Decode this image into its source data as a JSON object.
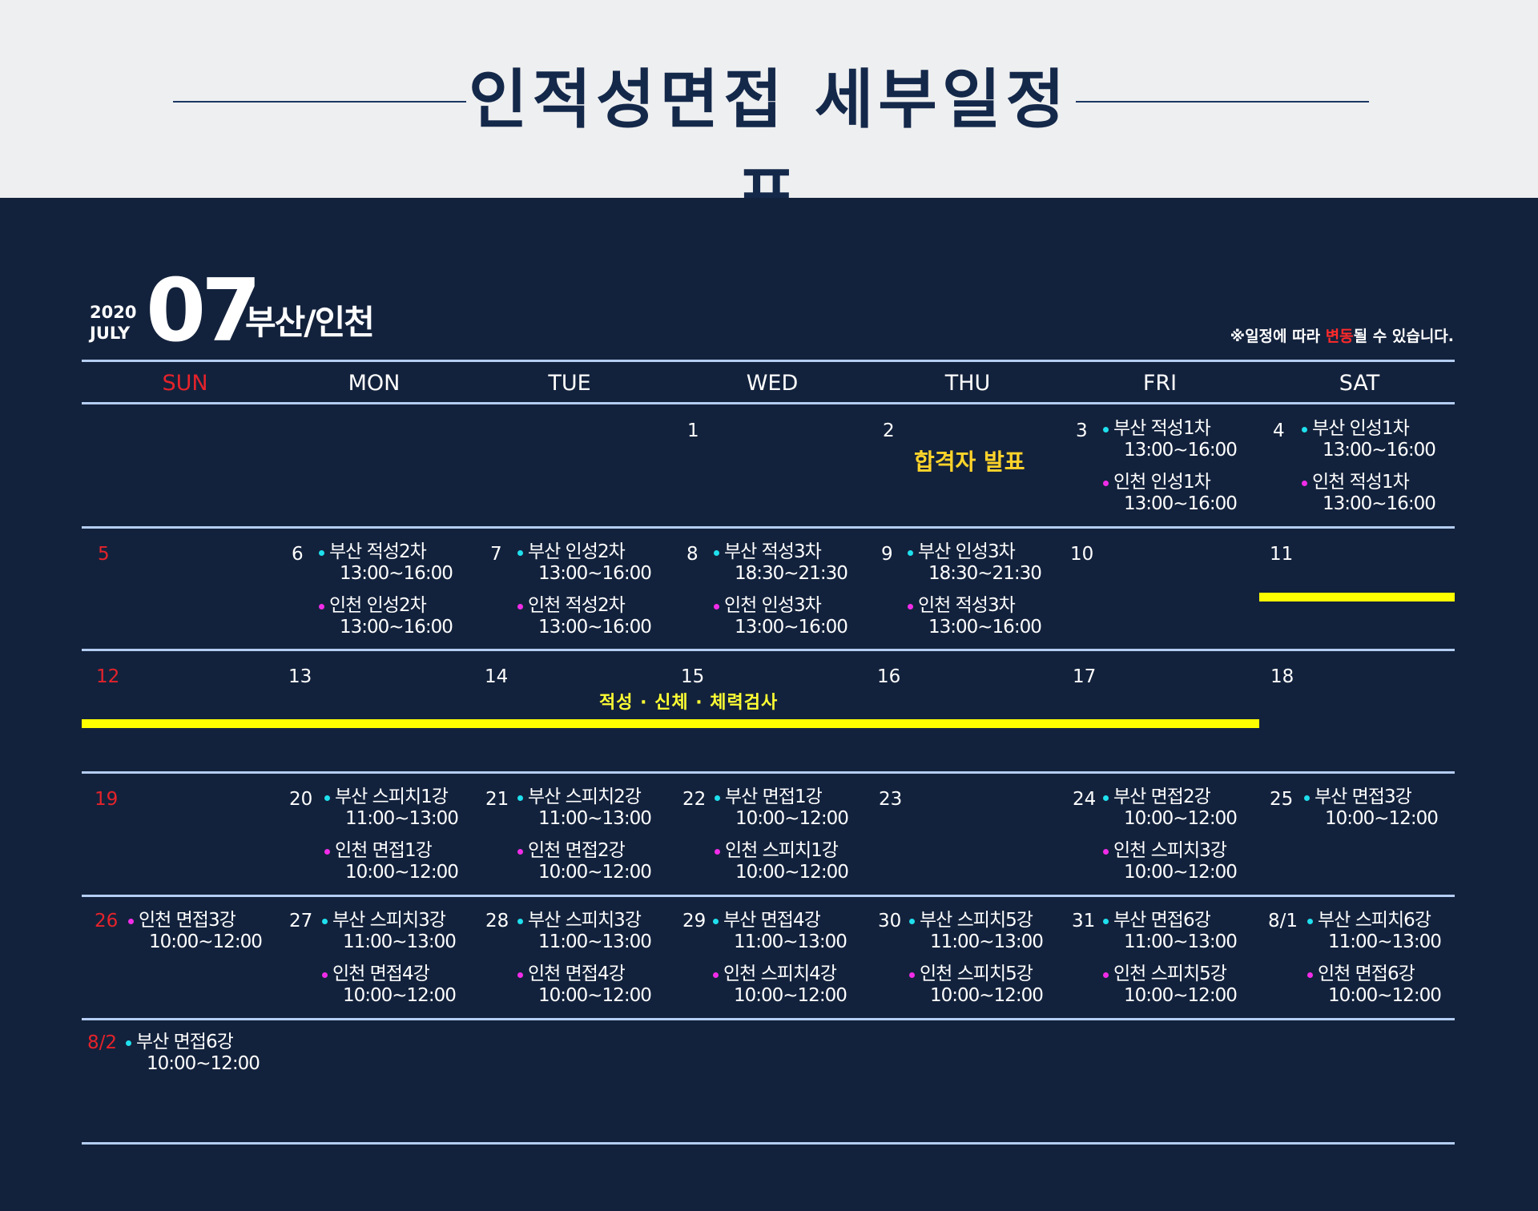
{
  "header": {
    "title": "인적성면접 세부일정표"
  },
  "month_head": {
    "year": "2020",
    "month_name": "JULY",
    "month_number": "07",
    "region": "부산/인천",
    "notice_prefix": "※일정에 따라 ",
    "notice_highlight": "변동",
    "notice_suffix": "될 수  있습니다."
  },
  "days": [
    "SUN",
    "MON",
    "TUE",
    "WED",
    "THU",
    "FRI",
    "SAT"
  ],
  "colors": {
    "busan_dot": "#1fe0ee",
    "incheon_dot": "#f12ce8",
    "sunday": "#e5232b",
    "highlight": "#ffff00",
    "announce": "#ffd42a"
  },
  "week1": {
    "d1": "1",
    "d2": "2",
    "d3": "3",
    "d4": "4",
    "announce": "합격자 발표",
    "e3a_title": "부산 적성1차",
    "e3a_time": "13:00~16:00",
    "e3b_title": "인천 인성1차",
    "e3b_time": "13:00~16:00",
    "e4a_title": "부산 인성1차",
    "e4a_time": "13:00~16:00",
    "e4b_title": "인천 적성1차",
    "e4b_time": "13:00~16:00"
  },
  "week2": {
    "d5": "5",
    "d6": "6",
    "d7": "7",
    "d8": "8",
    "d9": "9",
    "d10": "10",
    "d11": "11",
    "e6a_title": "부산 적성2차",
    "e6a_time": "13:00~16:00",
    "e6b_title": "인천 인성2차",
    "e6b_time": "13:00~16:00",
    "e7a_title": "부산 인성2차",
    "e7a_time": "13:00~16:00",
    "e7b_title": "인천 적성2차",
    "e7b_time": "13:00~16:00",
    "e8a_title": "부산 적성3차",
    "e8a_time": "18:30~21:30",
    "e8b_title": "인천 인성3차",
    "e8b_time": "13:00~16:00",
    "e9a_title": "부산 인성3차",
    "e9a_time": "18:30~21:30",
    "e9b_title": "인천 적성3차",
    "e9b_time": "13:00~16:00"
  },
  "week3": {
    "d12": "12",
    "d13": "13",
    "d14": "14",
    "d15": "15",
    "d16": "16",
    "d17": "17",
    "d18": "18",
    "bar_label": "적성 · 신체 · 체력검사"
  },
  "week4": {
    "d19": "19",
    "d20": "20",
    "d21": "21",
    "d22": "22",
    "d23": "23",
    "d24": "24",
    "d25": "25",
    "e20a_title": "부산 스피치1강",
    "e20a_time": "11:00~13:00",
    "e20b_title": "인천 면접1강",
    "e20b_time": "10:00~12:00",
    "e21a_title": "부산 스피치2강",
    "e21a_time": "11:00~13:00",
    "e21b_title": "인천 면접2강",
    "e21b_time": "10:00~12:00",
    "e22a_title": "부산 면접1강",
    "e22a_time": "10:00~12:00",
    "e22b_title": "인천 스피치1강",
    "e22b_time": "10:00~12:00",
    "e24a_title": "부산 면접2강",
    "e24a_time": "10:00~12:00",
    "e24b_title": "인천 스피치3강",
    "e24b_time": "10:00~12:00",
    "e25a_title": "부산 면접3강",
    "e25a_time": "10:00~12:00"
  },
  "week5": {
    "d26": "26",
    "d27": "27",
    "d28": "28",
    "d29": "29",
    "d30": "30",
    "d31": "31",
    "d81": "8/1",
    "e26a_title": "인천 면접3강",
    "e26a_time": "10:00~12:00",
    "e27a_title": "부산 스피치3강",
    "e27a_time": "11:00~13:00",
    "e27b_title": "인천 면접4강",
    "e27b_time": "10:00~12:00",
    "e28a_title": "부산 스피치3강",
    "e28a_time": "11:00~13:00",
    "e28b_title": "인천 면접4강",
    "e28b_time": "10:00~12:00",
    "e29a_title": "부산 면접4강",
    "e29a_time": "11:00~13:00",
    "e29b_title": "인천 스피치4강",
    "e29b_time": "10:00~12:00",
    "e30a_title": "부산 스피치5강",
    "e30a_time": "11:00~13:00",
    "e30b_title": "인천 스피치5강",
    "e30b_time": "10:00~12:00",
    "e31a_title": "부산 면접6강",
    "e31a_time": "11:00~13:00",
    "e31b_title": "인천 스피치5강",
    "e31b_time": "10:00~12:00",
    "e81a_title": "부산 스피치6강",
    "e81a_time": "11:00~13:00",
    "e81b_title": "인천 면접6강",
    "e81b_time": "10:00~12:00"
  },
  "week6": {
    "d82": "8/2",
    "e82a_title": "부산 면접6강",
    "e82a_time": "10:00~12:00"
  }
}
